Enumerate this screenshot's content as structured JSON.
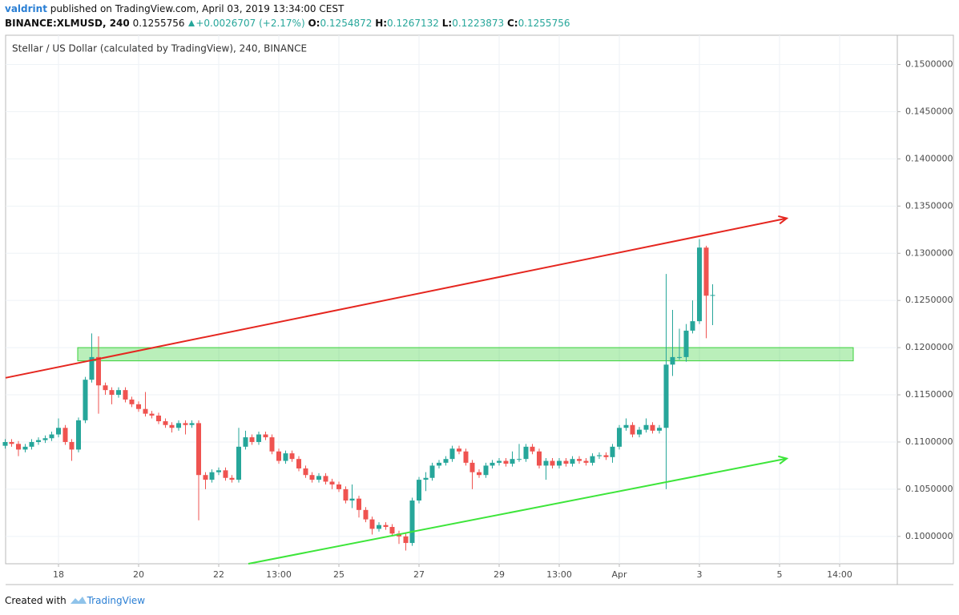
{
  "header": {
    "author": "valdrint",
    "published": "published on TradingView.com, April 03, 2019 13:34:00 CEST",
    "symbol": "BINANCE:XLMUSD, 240",
    "change": "+0.0026707 (+2.17%)",
    "o_label": "O:",
    "h_label": "H:",
    "l_label": "L:",
    "c_label": "C:"
  },
  "footer": {
    "created": "Created with",
    "brand": "TradingView"
  },
  "chart_data": {
    "type": "candlestick",
    "title": "Stellar / US Dollar (calculated by TradingView), 240, BINANCE",
    "up_color": "#26a69a",
    "down_color": "#ef5350",
    "grid": true,
    "xlim": [
      16.68,
      38.94
    ],
    "ylim": [
      0.0971,
      0.1531
    ],
    "xticks": [
      18,
      20,
      22,
      {
        "value": 23.5,
        "label": "13:00"
      },
      25,
      27,
      29,
      {
        "value": 30.5,
        "label": "13:00"
      },
      {
        "value": 32,
        "label": "Apr"
      },
      {
        "value": 34,
        "label": "3"
      },
      {
        "value": 36,
        "label": "5"
      },
      {
        "value": 37.5,
        "label": "14:00"
      }
    ],
    "yticks": [
      {
        "value": 0.1,
        "label": "0.1000000"
      },
      {
        "value": 0.105,
        "label": "0.1050000"
      },
      {
        "value": 0.11,
        "label": "0.1100000"
      },
      {
        "value": 0.115,
        "label": "0.1150000"
      },
      {
        "value": 0.12,
        "label": "0.1200000"
      },
      {
        "value": 0.125,
        "label": "0.1250000"
      },
      {
        "value": 0.13,
        "label": "0.1300000"
      },
      {
        "value": 0.135,
        "label": "0.1350000"
      },
      {
        "value": 0.14,
        "label": "0.1400000"
      },
      {
        "value": 0.145,
        "label": "0.1450000"
      },
      {
        "value": 0.15,
        "label": "0.1500000"
      }
    ],
    "x": [
      16.67,
      16.83,
      17,
      17.17,
      17.33,
      17.5,
      17.67,
      17.83,
      18,
      18.17,
      18.33,
      18.5,
      18.67,
      18.83,
      19,
      19.17,
      19.33,
      19.5,
      19.67,
      19.83,
      20,
      20.17,
      20.33,
      20.5,
      20.67,
      20.83,
      21,
      21.17,
      21.33,
      21.5,
      21.67,
      21.83,
      22,
      22.17,
      22.33,
      22.5,
      22.67,
      22.83,
      23,
      23.17,
      23.33,
      23.5,
      23.67,
      23.83,
      24,
      24.17,
      24.33,
      24.5,
      24.67,
      24.83,
      25,
      25.17,
      25.33,
      25.5,
      25.67,
      25.83,
      26,
      26.17,
      26.33,
      26.5,
      26.67,
      26.83,
      27,
      27.17,
      27.33,
      27.5,
      27.67,
      27.83,
      28,
      28.17,
      28.33,
      28.5,
      28.67,
      28.83,
      29,
      29.17,
      29.33,
      29.5,
      29.67,
      29.83,
      30,
      30.17,
      30.33,
      30.5,
      30.67,
      30.83,
      31,
      31.17,
      31.33,
      31.5,
      31.67,
      31.83,
      32,
      32.17,
      32.33,
      32.5,
      32.67,
      32.83,
      33,
      33.17,
      33.33,
      33.5,
      33.67,
      33.83,
      34,
      34.17,
      34.33
    ],
    "open": [
      0.1096,
      0.11,
      0.1098,
      0.1092,
      0.1095,
      0.11,
      0.1102,
      0.1104,
      0.1108,
      0.1115,
      0.11,
      0.1092,
      0.1123,
      0.1166,
      0.119,
      0.116,
      0.1155,
      0.115,
      0.1155,
      0.1145,
      0.114,
      0.1135,
      0.113,
      0.1128,
      0.1122,
      0.1118,
      0.1115,
      0.112,
      0.1118,
      0.112,
      0.1065,
      0.106,
      0.1068,
      0.107,
      0.1062,
      0.106,
      0.1095,
      0.1105,
      0.11,
      0.1108,
      0.1105,
      0.109,
      0.108,
      0.1088,
      0.1082,
      0.1072,
      0.1065,
      0.106,
      0.1064,
      0.1058,
      0.1055,
      0.105,
      0.1038,
      0.104,
      0.1028,
      0.1018,
      0.1008,
      0.1012,
      0.101,
      0.1003,
      0.1,
      0.0993,
      0.1038,
      0.106,
      0.1062,
      0.1075,
      0.1078,
      0.1082,
      0.1093,
      0.109,
      0.1078,
      0.1068,
      0.1065,
      0.1075,
      0.1078,
      0.108,
      0.1077,
      0.1082,
      0.1082,
      0.1095,
      0.109,
      0.1075,
      0.108,
      0.1075,
      0.108,
      0.1077,
      0.1082,
      0.108,
      0.1078,
      0.1085,
      0.1086,
      0.1084,
      0.1095,
      0.1115,
      0.1118,
      0.1108,
      0.1113,
      0.1118,
      0.1112,
      0.1115,
      0.1182,
      0.119,
      0.119,
      0.1218,
      0.1228,
      0.1306,
      0.1254872
    ],
    "high": [
      0.1103,
      0.1103,
      0.1101,
      0.1098,
      0.1103,
      0.1105,
      0.1107,
      0.1111,
      0.1125,
      0.1118,
      0.1103,
      0.1126,
      0.1169,
      0.1215,
      0.1212,
      0.1163,
      0.1158,
      0.1158,
      0.1158,
      0.1148,
      0.1143,
      0.1153,
      0.1133,
      0.1131,
      0.1125,
      0.1121,
      0.1123,
      0.1123,
      0.1123,
      0.1123,
      0.1068,
      0.1071,
      0.1073,
      0.1073,
      0.1065,
      0.1115,
      0.1112,
      0.1108,
      0.1111,
      0.1111,
      0.1108,
      0.1093,
      0.1091,
      0.1091,
      0.1085,
      0.1075,
      0.1068,
      0.1067,
      0.1067,
      0.1061,
      0.1058,
      0.1053,
      0.1055,
      0.1043,
      0.1031,
      0.1021,
      0.1015,
      0.1015,
      0.1013,
      0.1006,
      0.1003,
      0.1041,
      0.1063,
      0.1068,
      0.1078,
      0.1081,
      0.1085,
      0.1096,
      0.1096,
      0.1093,
      0.1081,
      0.1071,
      0.1078,
      0.1081,
      0.1083,
      0.1083,
      0.109,
      0.1098,
      0.1098,
      0.1098,
      0.1093,
      0.1083,
      0.1083,
      0.1083,
      0.1083,
      0.1085,
      0.1085,
      0.1083,
      0.1088,
      0.1089,
      0.1089,
      0.1098,
      0.1118,
      0.1125,
      0.1121,
      0.1116,
      0.1125,
      0.1121,
      0.1118,
      0.1278,
      0.124,
      0.122,
      0.1225,
      0.125,
      0.1315,
      0.1308,
      0.1267132
    ],
    "low": [
      0.1093,
      0.1095,
      0.1085,
      0.1089,
      0.1092,
      0.1097,
      0.1099,
      0.1101,
      0.1105,
      0.1097,
      0.108,
      0.1089,
      0.112,
      0.1163,
      0.113,
      0.115,
      0.114,
      0.1147,
      0.1142,
      0.1137,
      0.1132,
      0.1127,
      0.1125,
      0.1119,
      0.1115,
      0.111,
      0.1112,
      0.1108,
      0.1115,
      0.1017,
      0.105,
      0.1057,
      0.1065,
      0.1059,
      0.1057,
      0.1057,
      0.1092,
      0.1097,
      0.1097,
      0.1102,
      0.1087,
      0.1077,
      0.1077,
      0.1079,
      0.1069,
      0.1062,
      0.1057,
      0.1057,
      0.1055,
      0.105,
      0.1047,
      0.1035,
      0.103,
      0.102,
      0.1015,
      0.1002,
      0.1005,
      0.1007,
      0.1,
      0.0992,
      0.0985,
      0.099,
      0.1035,
      0.1048,
      0.1059,
      0.1072,
      0.1075,
      0.1079,
      0.1087,
      0.1075,
      0.105,
      0.1062,
      0.1062,
      0.1072,
      0.1075,
      0.1074,
      0.1074,
      0.1079,
      0.1079,
      0.1087,
      0.1072,
      0.106,
      0.1072,
      0.1072,
      0.1074,
      0.1074,
      0.1077,
      0.1075,
      0.1075,
      0.1082,
      0.1081,
      0.1078,
      0.1092,
      0.1112,
      0.1105,
      0.1105,
      0.111,
      0.1109,
      0.1109,
      0.105,
      0.117,
      0.1187,
      0.1185,
      0.1215,
      0.1225,
      0.121,
      0.1223873
    ],
    "close": [
      0.11,
      0.1098,
      0.1092,
      0.1095,
      0.11,
      0.1102,
      0.1104,
      0.1108,
      0.1115,
      0.11,
      0.1092,
      0.1123,
      0.1166,
      0.119,
      0.116,
      0.1155,
      0.115,
      0.1155,
      0.1145,
      0.114,
      0.1135,
      0.113,
      0.1128,
      0.1122,
      0.1118,
      0.1115,
      0.112,
      0.1118,
      0.112,
      0.1065,
      0.106,
      0.1068,
      0.107,
      0.1062,
      0.106,
      0.1095,
      0.1105,
      0.11,
      0.1108,
      0.1105,
      0.109,
      0.108,
      0.1088,
      0.1082,
      0.1072,
      0.1065,
      0.106,
      0.1064,
      0.1058,
      0.1055,
      0.105,
      0.1038,
      0.104,
      0.1028,
      0.1018,
      0.1008,
      0.1012,
      0.101,
      0.1003,
      0.1,
      0.0993,
      0.1038,
      0.106,
      0.1062,
      0.1075,
      0.1078,
      0.1082,
      0.1093,
      0.109,
      0.1078,
      0.1068,
      0.1065,
      0.1075,
      0.1078,
      0.108,
      0.1077,
      0.1082,
      0.1082,
      0.1095,
      0.109,
      0.1075,
      0.108,
      0.1075,
      0.108,
      0.1077,
      0.1082,
      0.108,
      0.1078,
      0.1085,
      0.1086,
      0.1084,
      0.1095,
      0.1115,
      0.1118,
      0.1108,
      0.1113,
      0.1118,
      0.1112,
      0.1115,
      0.1182,
      0.119,
      0.119,
      0.1218,
      0.1228,
      0.1306,
      0.1255,
      0.1255756
    ],
    "trendlines": [
      {
        "color": "#e5261f",
        "x": [
          16.68,
          36.18
        ],
        "y": [
          0.1168,
          0.1337
        ]
      },
      {
        "color": "#3de53a",
        "x": [
          22.74,
          36.18
        ],
        "y": [
          0.0971,
          0.10825
        ]
      }
    ],
    "zones": [
      {
        "color": "#39d13a",
        "x": [
          18.48,
          37.84
        ],
        "y": [
          0.1186,
          0.12
        ]
      }
    ]
  }
}
